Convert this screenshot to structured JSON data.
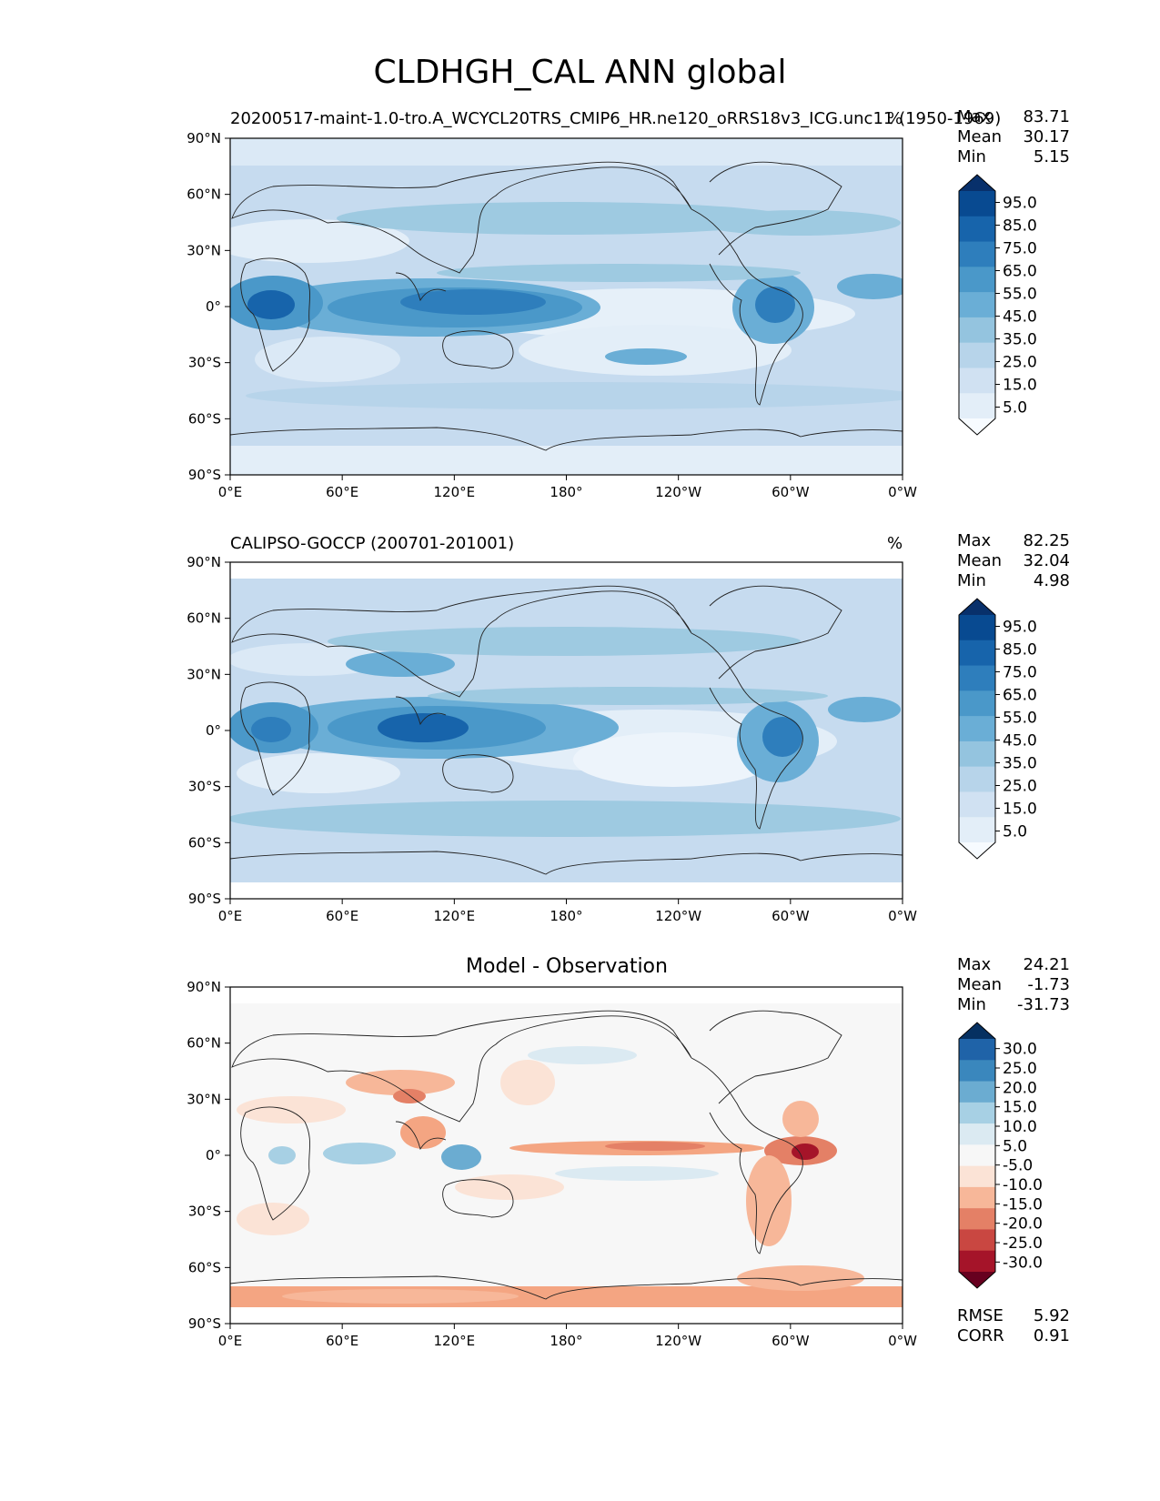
{
  "figure": {
    "title": "CLDHGH_CAL ANN global"
  },
  "lat_ticks": [
    "90°N",
    "60°N",
    "30°N",
    "0°",
    "30°S",
    "60°S",
    "90°S"
  ],
  "lon_ticks": [
    "0°E",
    "60°E",
    "120°E",
    "180°",
    "120°W",
    "60°W",
    "0°W"
  ],
  "panels": [
    {
      "id": "model",
      "left_title": "20200517-maint-1.0-tro.A_WCYCL20TRS_CMIP6_HR.ne120_oRRS18v3_ICG.unc11 (1950-1969)",
      "center_title": "",
      "units": "%",
      "stats": [
        {
          "label": "Max",
          "value": "83.71"
        },
        {
          "label": "Mean",
          "value": "30.17"
        },
        {
          "label": "Min",
          "value": "5.15"
        }
      ],
      "colorbar": {
        "colors": [
          "#f7fbff",
          "#e3eef8",
          "#d0e1f2",
          "#b7d4ea",
          "#94c4df",
          "#6aaed6",
          "#4a98c9",
          "#2e7ebc",
          "#1764ab",
          "#084a91",
          "#08306b"
        ],
        "labels": [
          "95.0",
          "85.0",
          "75.0",
          "65.0",
          "55.0",
          "45.0",
          "35.0",
          "25.0",
          "15.0",
          "5.0"
        ]
      },
      "extra_stats": []
    },
    {
      "id": "obs",
      "left_title": "CALIPSO-GOCCP (200701-201001)",
      "center_title": "",
      "units": "%",
      "stats": [
        {
          "label": "Max",
          "value": "82.25"
        },
        {
          "label": "Mean",
          "value": "32.04"
        },
        {
          "label": "Min",
          "value": "4.98"
        }
      ],
      "colorbar": {
        "colors": [
          "#f7fbff",
          "#e3eef8",
          "#d0e1f2",
          "#b7d4ea",
          "#94c4df",
          "#6aaed6",
          "#4a98c9",
          "#2e7ebc",
          "#1764ab",
          "#084a91",
          "#08306b"
        ],
        "labels": [
          "95.0",
          "85.0",
          "75.0",
          "65.0",
          "55.0",
          "45.0",
          "35.0",
          "25.0",
          "15.0",
          "5.0"
        ]
      },
      "extra_stats": []
    },
    {
      "id": "diff",
      "left_title": "",
      "center_title": "Model - Observation",
      "units": "",
      "stats": [
        {
          "label": "Max",
          "value": "24.21"
        },
        {
          "label": "Mean",
          "value": "-1.73"
        },
        {
          "label": "Min",
          "value": "-31.73"
        }
      ],
      "colorbar": {
        "colors": [
          "#67001f",
          "#a51429",
          "#c94741",
          "#e48066",
          "#f7b799",
          "#fbe3d6",
          "#f7f7f7",
          "#dbeaf2",
          "#a7d0e4",
          "#6bacd1",
          "#3a87bd",
          "#1f63a8",
          "#053061"
        ],
        "labels": [
          "30.0",
          "25.0",
          "20.0",
          "15.0",
          "10.0",
          "5.0",
          "-5.0",
          "-10.0",
          "-15.0",
          "-20.0",
          "-25.0",
          "-30.0"
        ]
      },
      "extra_stats": [
        {
          "label": "RMSE",
          "value": "5.92"
        },
        {
          "label": "CORR",
          "value": "0.91"
        }
      ]
    }
  ]
}
